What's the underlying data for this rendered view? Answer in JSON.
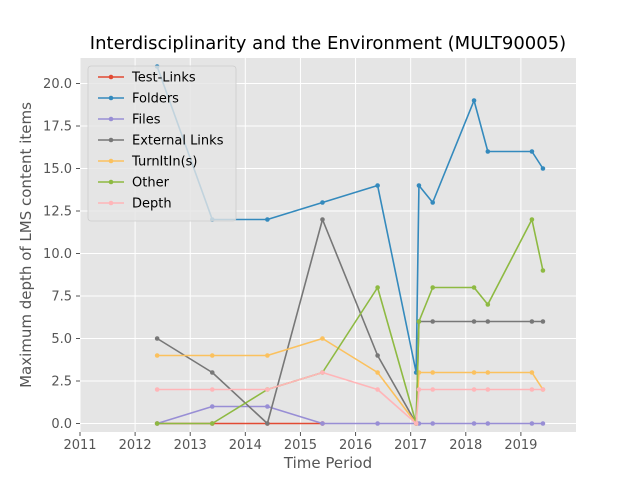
{
  "chart_data": {
    "type": "line",
    "title": "Interdisciplinarity and the Environment (MULT90005)",
    "xlabel": "Time Period",
    "ylabel": "Maximum depth of LMS content items",
    "xlim": [
      2011,
      2020
    ],
    "ylim": [
      -0.5,
      21.5
    ],
    "x_ticks": [
      2011,
      2012,
      2013,
      2014,
      2015,
      2016,
      2017,
      2018,
      2019
    ],
    "y_ticks": [
      0.0,
      2.5,
      5.0,
      7.5,
      10.0,
      12.5,
      15.0,
      17.5,
      20.0
    ],
    "grid": true,
    "legend_position": "top-left",
    "series": [
      {
        "name": "Test-Links",
        "color": "#E24A33",
        "x": [
          2012.4,
          2013.4,
          2014.4,
          2015.4
        ],
        "y": [
          0,
          0,
          0,
          0
        ]
      },
      {
        "name": "Folders",
        "color": "#348ABD",
        "x": [
          2012.4,
          2013.4,
          2014.4,
          2015.4,
          2016.4,
          2017.1,
          2017.15,
          2017.4,
          2018.15,
          2018.4,
          2019.2,
          2019.4
        ],
        "y": [
          21,
          12,
          12,
          13,
          14,
          3,
          14,
          13,
          19,
          16,
          16,
          15
        ]
      },
      {
        "name": "Files",
        "color": "#988ED5",
        "x": [
          2012.4,
          2013.4,
          2014.4,
          2015.4,
          2016.4,
          2017.1,
          2017.15,
          2017.4,
          2018.15,
          2018.4,
          2019.2,
          2019.4
        ],
        "y": [
          0,
          1,
          1,
          0,
          0,
          0,
          0,
          0,
          0,
          0,
          0,
          0
        ]
      },
      {
        "name": "External Links",
        "color": "#777777",
        "x": [
          2012.4,
          2013.4,
          2014.4,
          2015.4,
          2016.4,
          2017.1,
          2017.15,
          2017.4,
          2018.15,
          2018.4,
          2019.2,
          2019.4
        ],
        "y": [
          5,
          3,
          0,
          12,
          4,
          0,
          6,
          6,
          6,
          6,
          6,
          6
        ]
      },
      {
        "name": "TurnItIn(s)",
        "color": "#FBC15E",
        "x": [
          2012.4,
          2013.4,
          2014.4,
          2015.4,
          2016.4,
          2017.1,
          2017.15,
          2017.4,
          2018.15,
          2018.4,
          2019.2,
          2019.4
        ],
        "y": [
          4,
          4,
          4,
          5,
          3,
          0,
          3,
          3,
          3,
          3,
          3,
          2
        ]
      },
      {
        "name": "Other",
        "color": "#8EBA42",
        "x": [
          2012.4,
          2013.4,
          2014.4,
          2015.4,
          2016.4,
          2017.1,
          2017.15,
          2017.4,
          2018.15,
          2018.4,
          2019.2,
          2019.4
        ],
        "y": [
          0,
          0,
          2,
          3,
          8,
          0,
          6,
          8,
          8,
          7,
          12,
          9
        ]
      },
      {
        "name": "Depth",
        "color": "#FFB5B8",
        "x": [
          2012.4,
          2013.4,
          2014.4,
          2015.4,
          2016.4,
          2017.1,
          2017.15,
          2017.4,
          2018.15,
          2018.4,
          2019.2,
          2019.4
        ],
        "y": [
          2,
          2,
          2,
          3,
          2,
          0,
          2,
          2,
          2,
          2,
          2,
          2
        ]
      }
    ]
  }
}
